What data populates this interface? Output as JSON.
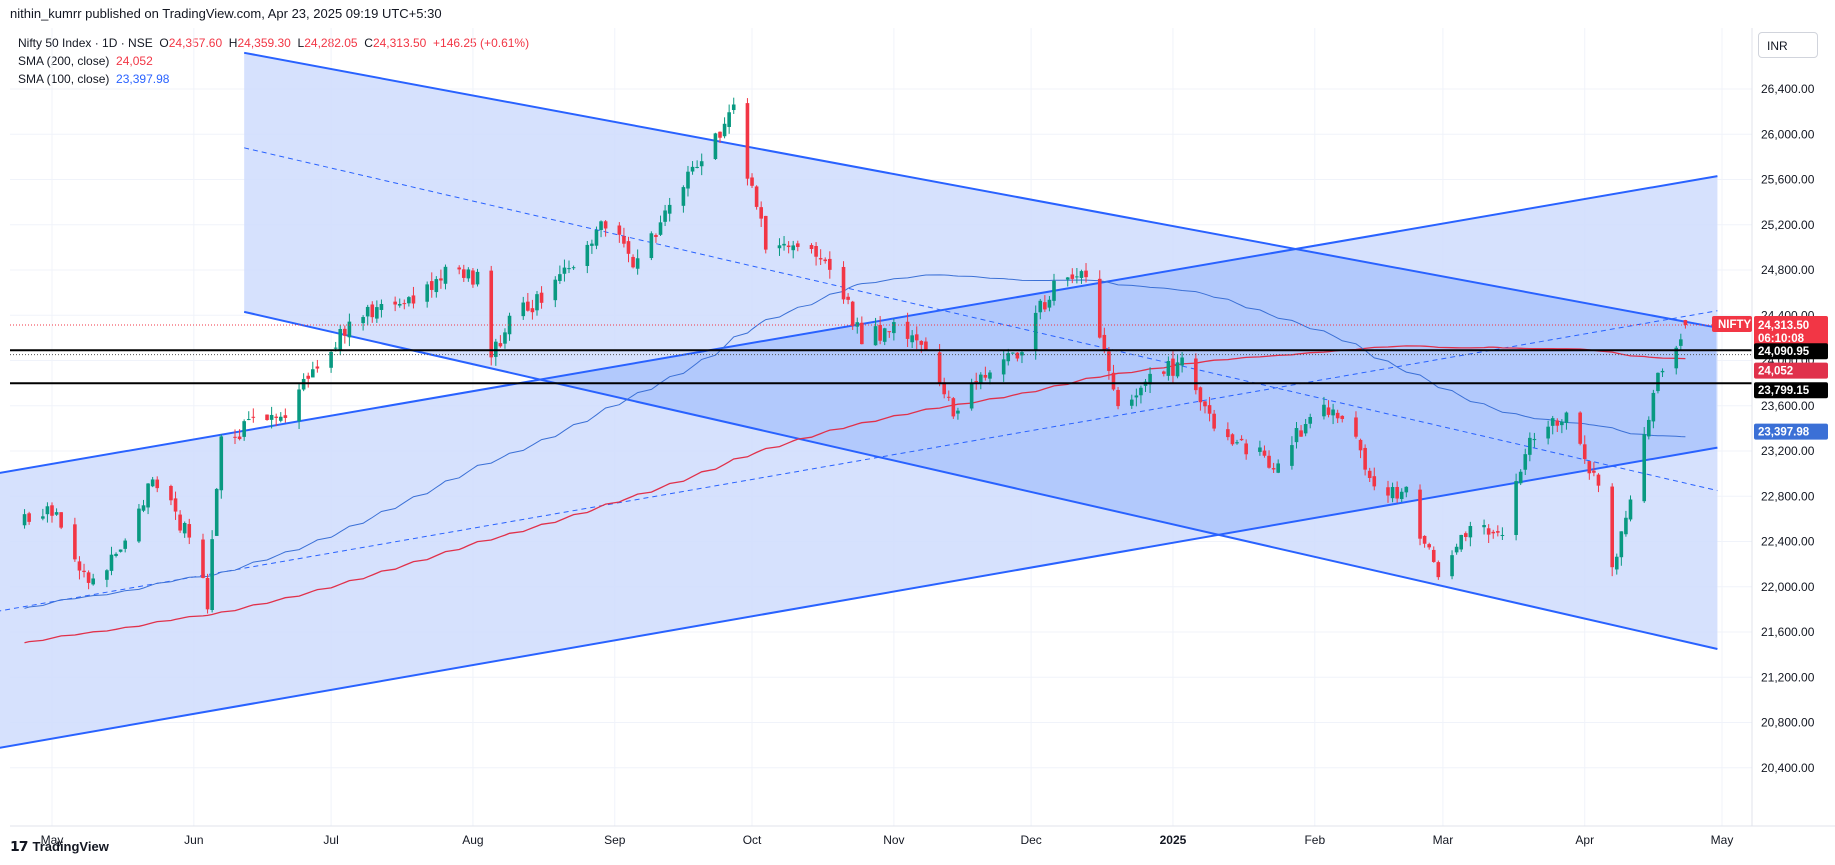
{
  "header": {
    "published": "nithin_kumrr published on TradingView.com, Apr 23, 2025 09:19 UTC+5:30"
  },
  "legend": {
    "title": "Nifty 50 Index · 1D · NSE",
    "o_key": "O",
    "o": "24,357.60",
    "h_key": "H",
    "h": "24,359.30",
    "l_key": "L",
    "l": "24,282.05",
    "c_key": "C",
    "c": "24,313.50",
    "change": "+146.25 (+0.61%)",
    "sma200_label": "SMA (200, close)",
    "sma200_value": "24,052",
    "sma100_label": "SMA (100, close)",
    "sma100_value": "23,397.98"
  },
  "currency": "INR",
  "footer": {
    "brand": "TradingView"
  },
  "price_tags": {
    "symbol": "NIFTY",
    "last_price": "24,313.50",
    "countdown": "06:10:08",
    "level_1": "24,090.95",
    "sma200": "24,052",
    "level_2": "23,799.15",
    "sma100": "23,397.98"
  },
  "colors": {
    "up": "#089981",
    "down": "#f23645",
    "channel": "#2962ff",
    "channel_fill": "#cfdcfd",
    "overlap_fill": "#a8c1fb",
    "sma200": "#e0314b",
    "sma100": "#3b70d6",
    "level": "#000000"
  },
  "chart_data": {
    "type": "candlestick",
    "title": "Nifty 50 Index · 1D · NSE",
    "y_ticks": [
      "26,400.00",
      "26,000.00",
      "25,600.00",
      "25,200.00",
      "24,800.00",
      "24,400.00",
      "24,000.00",
      "23,600.00",
      "23,200.00",
      "22,800.00",
      "22,400.00",
      "22,000.00",
      "21,600.00",
      "21,200.00",
      "20,800.00",
      "20,400.00"
    ],
    "x_ticks": [
      "May",
      "Jun",
      "Jul",
      "Aug",
      "Sep",
      "Oct",
      "Nov",
      "Dec",
      "2025",
      "Feb",
      "Mar",
      "Apr",
      "May"
    ],
    "y_range": [
      20250,
      26900
    ],
    "horizontal_levels": [
      24090.95,
      23799.15
    ],
    "last_price": 24313.5,
    "approx_daily_closes": [
      {
        "date": "2024-04-25",
        "close": 22570
      },
      {
        "date": "2024-05-02",
        "close": 22650
      },
      {
        "date": "2024-05-09",
        "close": 21960
      },
      {
        "date": "2024-05-16",
        "close": 22400
      },
      {
        "date": "2024-05-23",
        "close": 22960
      },
      {
        "date": "2024-05-30",
        "close": 22490
      },
      {
        "date": "2024-06-04",
        "close": 21880
      },
      {
        "date": "2024-06-07",
        "close": 23290
      },
      {
        "date": "2024-06-14",
        "close": 23460
      },
      {
        "date": "2024-06-21",
        "close": 23500
      },
      {
        "date": "2024-06-28",
        "close": 24000
      },
      {
        "date": "2024-07-05",
        "close": 24320
      },
      {
        "date": "2024-07-12",
        "close": 24500
      },
      {
        "date": "2024-07-19",
        "close": 24530
      },
      {
        "date": "2024-07-26",
        "close": 24830
      },
      {
        "date": "2024-08-02",
        "close": 24720
      },
      {
        "date": "2024-08-05",
        "close": 24050
      },
      {
        "date": "2024-08-09",
        "close": 24360
      },
      {
        "date": "2024-08-16",
        "close": 24540
      },
      {
        "date": "2024-08-23",
        "close": 24820
      },
      {
        "date": "2024-08-30",
        "close": 25230
      },
      {
        "date": "2024-09-06",
        "close": 24850
      },
      {
        "date": "2024-09-13",
        "close": 25360
      },
      {
        "date": "2024-09-20",
        "close": 25790
      },
      {
        "date": "2024-09-27",
        "close": 26180
      },
      {
        "date": "2024-10-04",
        "close": 25010
      },
      {
        "date": "2024-10-11",
        "close": 24960
      },
      {
        "date": "2024-10-18",
        "close": 24850
      },
      {
        "date": "2024-10-25",
        "close": 24180
      },
      {
        "date": "2024-11-01",
        "close": 24300
      },
      {
        "date": "2024-11-08",
        "close": 24150
      },
      {
        "date": "2024-11-14",
        "close": 23530
      },
      {
        "date": "2024-11-22",
        "close": 23900
      },
      {
        "date": "2024-11-29",
        "close": 24130
      },
      {
        "date": "2024-12-06",
        "close": 24680
      },
      {
        "date": "2024-12-13",
        "close": 24770
      },
      {
        "date": "2024-12-20",
        "close": 23590
      },
      {
        "date": "2024-12-27",
        "close": 23810
      },
      {
        "date": "2025-01-03",
        "close": 24000
      },
      {
        "date": "2025-01-10",
        "close": 23430
      },
      {
        "date": "2025-01-17",
        "close": 23200
      },
      {
        "date": "2025-01-24",
        "close": 23090
      },
      {
        "date": "2025-01-31",
        "close": 23510
      },
      {
        "date": "2025-02-07",
        "close": 23560
      },
      {
        "date": "2025-02-14",
        "close": 22930
      },
      {
        "date": "2025-02-21",
        "close": 22800
      },
      {
        "date": "2025-02-28",
        "close": 22120
      },
      {
        "date": "2025-03-07",
        "close": 22550
      },
      {
        "date": "2025-03-13",
        "close": 22400
      },
      {
        "date": "2025-03-21",
        "close": 23350
      },
      {
        "date": "2025-03-28",
        "close": 23520
      },
      {
        "date": "2025-04-04",
        "close": 22900
      },
      {
        "date": "2025-04-07",
        "close": 22160
      },
      {
        "date": "2025-04-11",
        "close": 22830
      },
      {
        "date": "2025-04-17",
        "close": 23850
      },
      {
        "date": "2025-04-22",
        "close": 24170
      },
      {
        "date": "2025-04-23",
        "close": 24313.5
      }
    ],
    "series": [
      {
        "name": "SMA (200, close)",
        "last": 24052
      },
      {
        "name": "SMA (100, close)",
        "last": 23397.98
      }
    ]
  }
}
